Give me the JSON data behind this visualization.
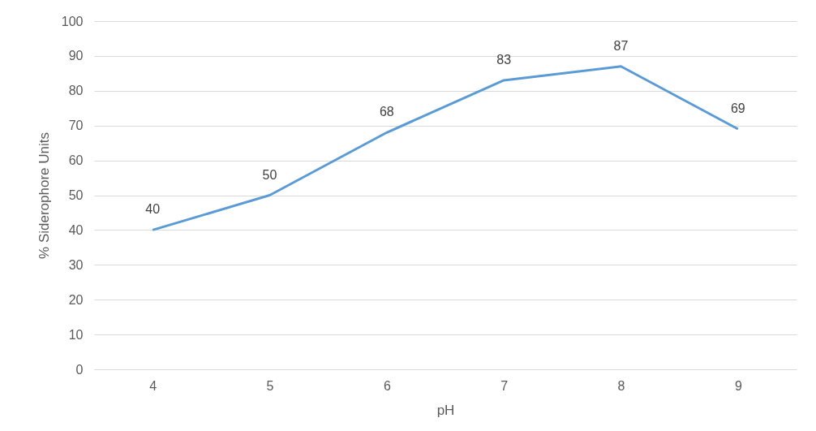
{
  "chart_data": {
    "type": "line",
    "xlabel": "pH",
    "ylabel": "% Siderophore Units",
    "categories": [
      "4",
      "5",
      "6",
      "7",
      "8",
      "9"
    ],
    "series": [
      {
        "color": "#5b9bd5",
        "values": [
          40,
          50,
          68,
          83,
          87,
          69
        ]
      }
    ],
    "ylim": [
      0,
      100
    ],
    "yticks": [
      0,
      10,
      20,
      30,
      40,
      50,
      60,
      70,
      80,
      90,
      100
    ],
    "grid": "y",
    "data_labels": true,
    "marker": "none",
    "line_style": "solid"
  }
}
